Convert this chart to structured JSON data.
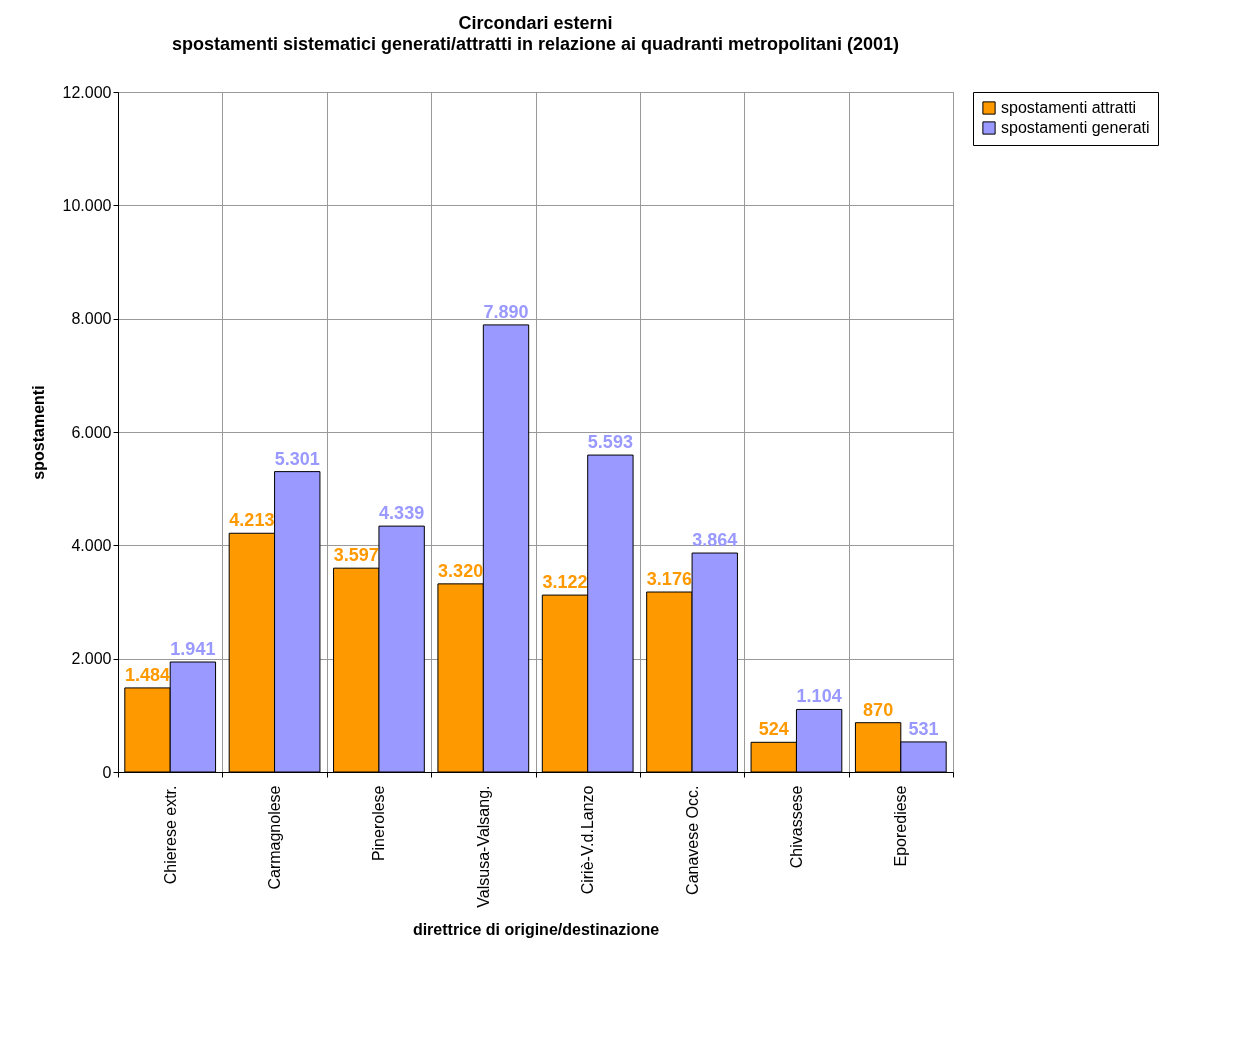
{
  "chart_data": {
    "type": "bar",
    "title": "Circondari esterni",
    "subtitle": "spostamenti sistematici generati/attratti in relazione ai quadranti metropolitani (2001)",
    "xlabel": "direttrice di origine/destinazione",
    "ylabel": "spostamenti",
    "categories": [
      "Chierese extr.",
      "Carmagnolese",
      "Pinerolese",
      "Valsusa-Valsang.",
      "Ciriè-V.d.Lanzo",
      "Canavese Occ.",
      "Chivassese",
      "Eporediese"
    ],
    "series": [
      {
        "name": "spostamenti attratti",
        "color": "#ff9900",
        "values": [
          1484,
          4213,
          3597,
          3320,
          3122,
          3176,
          524,
          870
        ],
        "value_labels": [
          "1.484",
          "4.213",
          "3.597",
          "3.320",
          "3.122",
          "3.176",
          "524",
          "870"
        ]
      },
      {
        "name": "spostamenti generati",
        "color": "#9999ff",
        "values": [
          1941,
          5301,
          4339,
          7890,
          5593,
          3864,
          1104,
          531
        ],
        "value_labels": [
          "1.941",
          "5.301",
          "4.339",
          "7.890",
          "5.593",
          "3.864",
          "1.104",
          "531"
        ]
      }
    ],
    "ylim": [
      0,
      12000
    ],
    "yticks": [
      0,
      {
        "value": 2000,
        "label": "2.000"
      },
      {
        "value": 4000,
        "label": "4.000"
      },
      {
        "value": 6000,
        "label": "6.000"
      },
      {
        "value": 8000,
        "label": "8.000"
      },
      {
        "value": 10000,
        "label": "10.000"
      },
      {
        "value": 12000,
        "label": "12.000"
      }
    ],
    "grid": true,
    "legend": "right"
  }
}
